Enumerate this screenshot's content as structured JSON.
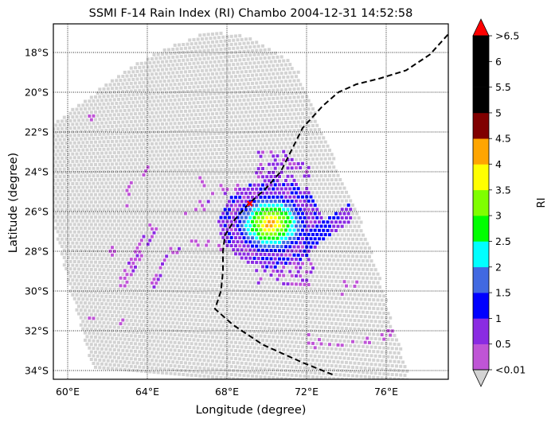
{
  "chart_data": {
    "type": "heatmap",
    "title": "SSMI F-14 Rain Index (RI) Chambo 2004-12-31 14:52:58",
    "xlabel": "Longitude (degree)",
    "ylabel": "Latitude (degree)",
    "xlim": [
      59.28,
      79.12
    ],
    "ylim": [
      -34.44,
      -16.56
    ],
    "grid": true,
    "x_ticks": [
      60,
      64,
      68,
      72,
      76
    ],
    "x_tick_labels": [
      "60°E",
      "64°E",
      "68°E",
      "72°E",
      "76°E"
    ],
    "y_ticks": [
      -18,
      -20,
      -22,
      -24,
      -26,
      -28,
      -30,
      -32,
      -34
    ],
    "y_tick_labels": [
      "18°S",
      "20°S",
      "22°S",
      "24°S",
      "26°S",
      "28°S",
      "30°S",
      "32°S",
      "34°S"
    ],
    "colorbar": {
      "label": "RI",
      "tick_labels": [
        "<0.01",
        "0.5",
        "1",
        "1.5",
        "2",
        "2.5",
        "3",
        "3.5",
        "4",
        "4.5",
        "5",
        "5.5",
        "6",
        ">6.5"
      ],
      "boundaries": [
        0.01,
        0.5,
        1,
        1.5,
        2,
        2.5,
        3,
        3.5,
        4,
        4.5,
        5,
        5.5,
        6,
        6.5
      ],
      "colors": [
        "#bf55d6",
        "#8a2be2",
        "#0000ff",
        "#4169e1",
        "#00ffff",
        "#00ff00",
        "#7fff00",
        "#ffff00",
        "#ffa500",
        "#800000",
        "#000000",
        "#000000",
        "#000000"
      ],
      "under_color": "#d3d3d3",
      "over_color": "#ff0000",
      "extend": "both"
    },
    "swath": {
      "description_color": "#d3d3d3",
      "corners": {
        "top_center": [
          67.0,
          -17.0
        ],
        "top_right": [
          71.6,
          -19.2
        ],
        "left_top": [
          59.3,
          -21.5
        ],
        "left_mid": [
          59.3,
          -26.0
        ],
        "bottom_left": [
          61.2,
          -34.4
        ],
        "bottom_right": [
          77.5,
          -34.4
        ]
      }
    },
    "rain_pixels": {
      "core_center": [
        70.2,
        -26.6
      ],
      "regions": [
        {
          "name": "core",
          "center": [
            70.2,
            -26.6
          ],
          "max_ri": 4.0
        },
        {
          "name": "north_band",
          "center": [
            70.5,
            -24.2
          ],
          "max_ri": 1.0
        },
        {
          "name": "east_arm",
          "center": [
            73.5,
            -26.6
          ],
          "max_ri": 1.5
        },
        {
          "name": "south_band",
          "center": [
            71.5,
            -29.0
          ],
          "max_ri": 1.0
        },
        {
          "name": "west_bands",
          "center": [
            64.5,
            -28.5
          ],
          "max_ri": 1.0
        }
      ]
    },
    "track": {
      "style": "dashed",
      "color": "#000000",
      "points": [
        [
          79.1,
          -17.1
        ],
        [
          78.2,
          -18.1
        ],
        [
          77.0,
          -18.9
        ],
        [
          75.7,
          -19.3
        ],
        [
          74.5,
          -19.6
        ],
        [
          73.6,
          -20.0
        ],
        [
          72.8,
          -20.7
        ],
        [
          71.8,
          -21.8
        ],
        [
          71.2,
          -23.0
        ],
        [
          70.7,
          -24.0
        ],
        [
          69.9,
          -24.9
        ],
        [
          69.1,
          -25.6
        ],
        [
          68.4,
          -26.4
        ],
        [
          67.9,
          -27.2
        ],
        [
          67.8,
          -28.0
        ],
        [
          67.8,
          -29.0
        ],
        [
          67.7,
          -30.0
        ],
        [
          67.4,
          -30.9
        ],
        [
          68.3,
          -31.7
        ],
        [
          69.8,
          -32.7
        ],
        [
          71.8,
          -33.6
        ],
        [
          73.3,
          -34.2
        ]
      ]
    },
    "marker": {
      "lon": 69.15,
      "lat": -25.6,
      "color": "#ff0000",
      "symbol": "x"
    }
  }
}
